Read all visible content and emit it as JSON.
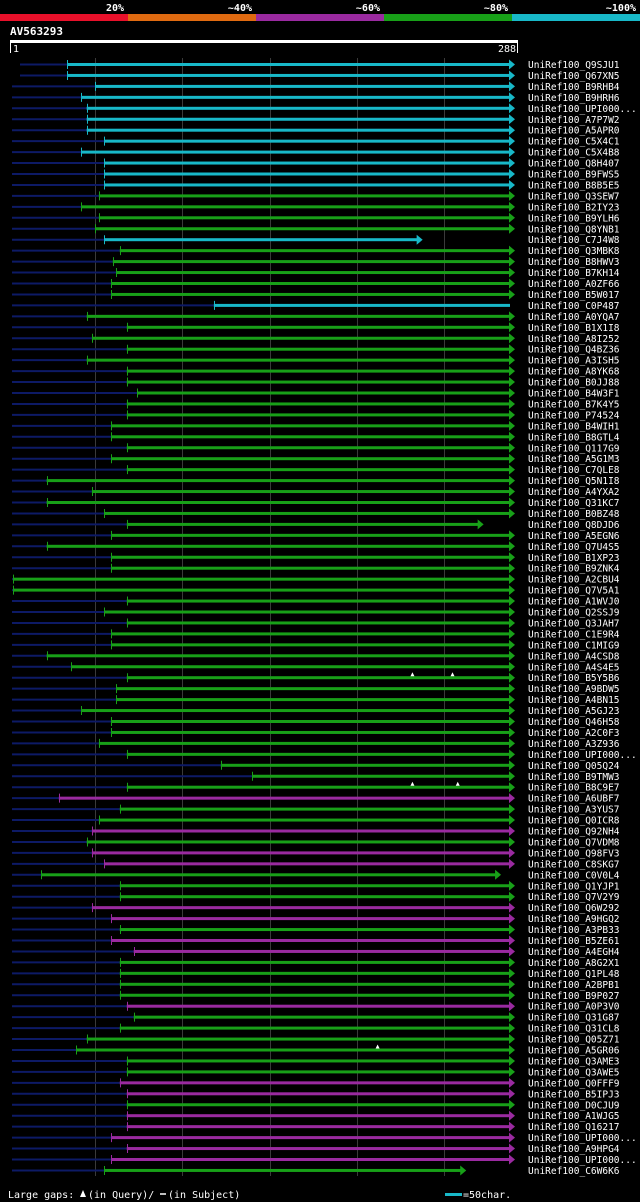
{
  "chart_data": {
    "type": "alignment-overview",
    "identity_scale": {
      "segments": [
        {
          "label": "20%",
          "color": "#e8102a"
        },
        {
          "label": "~40%",
          "color": "#e06a10"
        },
        {
          "label": "~60%",
          "color": "#9a2aa0"
        },
        {
          "label": "~80%",
          "color": "#18a018"
        },
        {
          "label": "~100%",
          "color": "#18b8c8"
        }
      ]
    },
    "query": {
      "id": "AV563293",
      "start": 1,
      "end": 288
    },
    "footer": {
      "gaps_label": "Large gaps:",
      "query_gap_text": "(in Query)/",
      "subject_gap_text": "(in Subject)",
      "scale_label": "=50char."
    },
    "colors": {
      "cyan": "#18b8c8",
      "green": "#18a018",
      "purple": "#9a2aa0",
      "navy": "#0d1a66",
      "grid": "#3a3a3a"
    },
    "hits": [
      {
        "name": "UniRef100_Q9SJU1",
        "tail": 8,
        "start": 34,
        "end": 288,
        "color": "cyan",
        "arrow": "right",
        "pipe": 1
      },
      {
        "name": "UniRef100_Q67XN5",
        "tail": 8,
        "start": 34,
        "end": 288,
        "color": "cyan",
        "arrow": "right",
        "pipe": 1
      },
      {
        "name": "UniRef100_B9RHB4",
        "tail": 0,
        "start": 50,
        "end": 288,
        "color": "cyan",
        "arrow": "right",
        "pipe": 1
      },
      {
        "name": "UniRef100_B9HRH6",
        "tail": 0,
        "start": 42,
        "end": 288,
        "color": "cyan",
        "arrow": "right",
        "pipe": 1
      },
      {
        "name": "UniRef100_UPI000...",
        "tail": 0,
        "start": 45,
        "end": 288,
        "color": "cyan",
        "arrow": "right"
      },
      {
        "name": "UniRef100_A7P7W2",
        "tail": 0,
        "start": 45,
        "end": 288,
        "color": "cyan",
        "arrow": "right"
      },
      {
        "name": "UniRef100_A5APR0",
        "tail": 0,
        "start": 45,
        "end": 288,
        "color": "cyan",
        "arrow": "right"
      },
      {
        "name": "UniRef100_C5X4C1",
        "tail": 0,
        "start": 55,
        "end": 288,
        "color": "cyan",
        "arrow": "right"
      },
      {
        "name": "UniRef100_C5X4B8",
        "tail": 0,
        "start": 42,
        "end": 288,
        "color": "cyan",
        "arrow": "right"
      },
      {
        "name": "UniRef100_Q8H407",
        "tail": 0,
        "start": 55,
        "end": 288,
        "color": "cyan",
        "arrow": "right"
      },
      {
        "name": "UniRef100_B9FWS5",
        "tail": 0,
        "start": 55,
        "end": 288,
        "color": "cyan",
        "arrow": "right"
      },
      {
        "name": "UniRef100_B8B5E5",
        "tail": 0,
        "start": 55,
        "end": 288,
        "color": "cyan",
        "arrow": "right"
      },
      {
        "name": "UniRef100_Q3SEW7",
        "tail": 0,
        "start": 52,
        "end": 288,
        "color": "green",
        "arrow": "right"
      },
      {
        "name": "UniRef100_B2IY23",
        "tail": 0,
        "start": 42,
        "end": 288,
        "color": "green",
        "arrow": "right"
      },
      {
        "name": "UniRef100_B9YLH6",
        "tail": 0,
        "start": 52,
        "end": 288,
        "color": "green",
        "arrow": "right"
      },
      {
        "name": "UniRef100_Q8YNB1",
        "tail": 0,
        "start": 50,
        "end": 288,
        "color": "green",
        "arrow": "right"
      },
      {
        "name": "UniRef100_C7J4W8",
        "tail": 0,
        "start": 55,
        "end": 235,
        "color": "cyan",
        "arrow": "right"
      },
      {
        "name": "UniRef100_Q3MBK8",
        "tail": 0,
        "start": 64,
        "end": 288,
        "color": "green",
        "arrow": "right"
      },
      {
        "name": "UniRef100_B8HWV3",
        "tail": 0,
        "start": 60,
        "end": 288,
        "color": "green",
        "arrow": "right"
      },
      {
        "name": "UniRef100_B7KH14",
        "tail": 0,
        "start": 62,
        "end": 288,
        "color": "green",
        "arrow": "right"
      },
      {
        "name": "UniRef100_A0ZF66",
        "tail": 0,
        "start": 59,
        "end": 288,
        "color": "green",
        "arrow": "right"
      },
      {
        "name": "UniRef100_B5W017",
        "tail": 0,
        "start": 59,
        "end": 288,
        "color": "green",
        "arrow": "right"
      },
      {
        "name": "UniRef100_C0P487",
        "tail": 0,
        "start": 118,
        "end": 288,
        "color": "cyan",
        "arrow": "none"
      },
      {
        "name": "UniRef100_A0YQA7",
        "tail": 0,
        "start": 45,
        "end": 288,
        "color": "green",
        "arrow": "right"
      },
      {
        "name": "UniRef100_B1X1I8",
        "tail": 0,
        "start": 68,
        "end": 288,
        "color": "green",
        "arrow": "right"
      },
      {
        "name": "UniRef100_A8I252",
        "tail": 0,
        "start": 48,
        "end": 288,
        "color": "green",
        "arrow": "right"
      },
      {
        "name": "UniRef100_Q4BZ36",
        "tail": 0,
        "start": 68,
        "end": 288,
        "color": "green",
        "arrow": "right"
      },
      {
        "name": "UniRef100_A3ISH5",
        "tail": 0,
        "start": 45,
        "end": 288,
        "color": "green",
        "arrow": "right"
      },
      {
        "name": "UniRef100_A8YK68",
        "tail": 0,
        "start": 68,
        "end": 288,
        "color": "green",
        "arrow": "right"
      },
      {
        "name": "UniRef100_B0JJ88",
        "tail": 0,
        "start": 68,
        "end": 288,
        "color": "green",
        "arrow": "right"
      },
      {
        "name": "UniRef100_B4W3F1",
        "tail": 0,
        "start": 74,
        "end": 288,
        "color": "green",
        "arrow": "right"
      },
      {
        "name": "UniRef100_B7K4Y5",
        "tail": 0,
        "start": 68,
        "end": 288,
        "color": "green",
        "arrow": "right"
      },
      {
        "name": "UniRef100_P74524",
        "tail": 0,
        "start": 68,
        "end": 288,
        "color": "green",
        "arrow": "right"
      },
      {
        "name": "UniRef100_B4WIH1",
        "tail": 0,
        "start": 59,
        "end": 288,
        "color": "green",
        "arrow": "right"
      },
      {
        "name": "UniRef100_B8GTL4",
        "tail": 0,
        "start": 59,
        "end": 288,
        "color": "green",
        "arrow": "right"
      },
      {
        "name": "UniRef100_Q117G9",
        "tail": 0,
        "start": 68,
        "end": 288,
        "color": "green",
        "arrow": "right"
      },
      {
        "name": "UniRef100_A5G1M3",
        "tail": 0,
        "start": 59,
        "end": 288,
        "color": "green",
        "arrow": "right"
      },
      {
        "name": "UniRef100_C7QLE8",
        "tail": 0,
        "start": 68,
        "end": 288,
        "color": "green",
        "arrow": "right"
      },
      {
        "name": "UniRef100_Q5N1I8",
        "tail": 0,
        "start": 22,
        "end": 288,
        "color": "green",
        "arrow": "right"
      },
      {
        "name": "UniRef100_A4YXA2",
        "tail": 0,
        "start": 48,
        "end": 288,
        "color": "green",
        "arrow": "right"
      },
      {
        "name": "UniRef100_Q31KC7",
        "tail": 0,
        "start": 22,
        "end": 288,
        "color": "green",
        "arrow": "right"
      },
      {
        "name": "UniRef100_B0BZ48",
        "tail": 0,
        "start": 55,
        "end": 288,
        "color": "green",
        "arrow": "right"
      },
      {
        "name": "UniRef100_Q8DJD6",
        "tail": 0,
        "start": 68,
        "end": 270,
        "color": "green",
        "arrow": "right"
      },
      {
        "name": "UniRef100_A5EGN6",
        "tail": 0,
        "start": 59,
        "end": 288,
        "color": "green",
        "arrow": "right"
      },
      {
        "name": "UniRef100_Q7U4S5",
        "tail": 0,
        "start": 22,
        "end": 288,
        "color": "green",
        "arrow": "right"
      },
      {
        "name": "UniRef100_B1XP23",
        "tail": 0,
        "start": 59,
        "end": 288,
        "color": "green",
        "arrow": "right"
      },
      {
        "name": "UniRef100_B9ZNK4",
        "tail": 0,
        "start": 59,
        "end": 288,
        "color": "green",
        "arrow": "right"
      },
      {
        "name": "UniRef100_A2CBU4",
        "tail": 0,
        "start": 3,
        "end": 288,
        "color": "green",
        "arrow": "right"
      },
      {
        "name": "UniRef100_Q7V5A1",
        "tail": 0,
        "start": 3,
        "end": 288,
        "color": "green",
        "arrow": "right"
      },
      {
        "name": "UniRef100_A1WVJ0",
        "tail": 0,
        "start": 68,
        "end": 288,
        "color": "green",
        "arrow": "right"
      },
      {
        "name": "UniRef100_Q2SSJ9",
        "tail": 0,
        "start": 55,
        "end": 288,
        "color": "green",
        "arrow": "right"
      },
      {
        "name": "UniRef100_Q3JAH7",
        "tail": 0,
        "start": 68,
        "end": 288,
        "color": "green",
        "arrow": "right"
      },
      {
        "name": "UniRef100_C1E9R4",
        "tail": 0,
        "start": 59,
        "end": 288,
        "color": "green",
        "arrow": "right"
      },
      {
        "name": "UniRef100_C1MIG9",
        "tail": 0,
        "start": 59,
        "end": 288,
        "color": "green",
        "arrow": "right"
      },
      {
        "name": "UniRef100_A4CSD8",
        "tail": 0,
        "start": 22,
        "end": 288,
        "color": "green",
        "arrow": "right"
      },
      {
        "name": "UniRef100_A4S4E5",
        "tail": 0,
        "start": 36,
        "end": 288,
        "color": "green",
        "arrow": "right"
      },
      {
        "name": "UniRef100_B5Y5B6",
        "tail": 0,
        "start": 68,
        "end": 288,
        "color": "green",
        "arrow": "right",
        "marks": [
          232,
          255
        ]
      },
      {
        "name": "UniRef100_A9BDW5",
        "tail": 0,
        "start": 62,
        "end": 288,
        "color": "green",
        "arrow": "right"
      },
      {
        "name": "UniRef100_A4BN15",
        "tail": 0,
        "start": 62,
        "end": 288,
        "color": "green",
        "arrow": "right"
      },
      {
        "name": "UniRef100_A5GJ23",
        "tail": 0,
        "start": 42,
        "end": 288,
        "color": "green",
        "arrow": "right"
      },
      {
        "name": "UniRef100_Q46H58",
        "tail": 0,
        "start": 59,
        "end": 288,
        "color": "green",
        "arrow": "right"
      },
      {
        "name": "UniRef100_A2C0F3",
        "tail": 0,
        "start": 59,
        "end": 288,
        "color": "green",
        "arrow": "right"
      },
      {
        "name": "UniRef100_A3Z936",
        "tail": 0,
        "start": 52,
        "end": 288,
        "color": "green",
        "arrow": "right"
      },
      {
        "name": "UniRef100_UPI000...",
        "tail": 0,
        "start": 68,
        "end": 288,
        "color": "green",
        "arrow": "right"
      },
      {
        "name": "UniRef100_Q05Q24",
        "tail": 0,
        "start": 122,
        "end": 288,
        "color": "green",
        "arrow": "right"
      },
      {
        "name": "UniRef100_B9TMW3",
        "tail": 0,
        "start": 140,
        "end": 288,
        "color": "green",
        "arrow": "right"
      },
      {
        "name": "UniRef100_B8C9E7",
        "tail": 0,
        "start": 68,
        "end": 288,
        "color": "green",
        "arrow": "right",
        "marks": [
          232,
          258
        ]
      },
      {
        "name": "UniRef100_A6UBF7",
        "tail": 0,
        "start": 29,
        "end": 288,
        "color": "purple",
        "arrow": "right"
      },
      {
        "name": "UniRef100_A3YUS7",
        "tail": 0,
        "start": 64,
        "end": 288,
        "color": "green",
        "arrow": "right"
      },
      {
        "name": "UniRef100_Q0ICR8",
        "tail": 0,
        "start": 52,
        "end": 288,
        "color": "green",
        "arrow": "right"
      },
      {
        "name": "UniRef100_Q92NH4",
        "tail": 0,
        "start": 48,
        "end": 288,
        "color": "purple",
        "arrow": "right"
      },
      {
        "name": "UniRef100_Q7VDM8",
        "tail": 0,
        "start": 45,
        "end": 288,
        "color": "green",
        "arrow": "right"
      },
      {
        "name": "UniRef100_Q98FV3",
        "tail": 0,
        "start": 48,
        "end": 288,
        "color": "purple",
        "arrow": "right"
      },
      {
        "name": "UniRef100_C8SKG7",
        "tail": 0,
        "start": 55,
        "end": 288,
        "color": "purple",
        "arrow": "right"
      },
      {
        "name": "UniRef100_C0V0L4",
        "tail": 0,
        "start": 19,
        "end": 280,
        "color": "green",
        "arrow": "right"
      },
      {
        "name": "UniRef100_Q1YJP1",
        "tail": 0,
        "start": 64,
        "end": 288,
        "color": "green",
        "arrow": "right"
      },
      {
        "name": "UniRef100_Q7V2Y9",
        "tail": 0,
        "start": 64,
        "end": 288,
        "color": "green",
        "arrow": "right"
      },
      {
        "name": "UniRef100_Q6W292",
        "tail": 0,
        "start": 48,
        "end": 288,
        "color": "purple",
        "arrow": "right"
      },
      {
        "name": "UniRef100_A9HGQ2",
        "tail": 0,
        "start": 59,
        "end": 288,
        "color": "purple",
        "arrow": "right"
      },
      {
        "name": "UniRef100_A3PB33",
        "tail": 0,
        "start": 64,
        "end": 288,
        "color": "green",
        "arrow": "right"
      },
      {
        "name": "UniRef100_B5ZE61",
        "tail": 0,
        "start": 59,
        "end": 288,
        "color": "purple",
        "arrow": "right"
      },
      {
        "name": "UniRef100_A4EGH4",
        "tail": 0,
        "start": 72,
        "end": 288,
        "color": "purple",
        "arrow": "right"
      },
      {
        "name": "UniRef100_A8G2X1",
        "tail": 0,
        "start": 64,
        "end": 288,
        "color": "green",
        "arrow": "right"
      },
      {
        "name": "UniRef100_Q1PL48",
        "tail": 0,
        "start": 64,
        "end": 288,
        "color": "green",
        "arrow": "right"
      },
      {
        "name": "UniRef100_A2BPB1",
        "tail": 0,
        "start": 64,
        "end": 288,
        "color": "green",
        "arrow": "right"
      },
      {
        "name": "UniRef100_B9P027",
        "tail": 0,
        "start": 64,
        "end": 288,
        "color": "green",
        "arrow": "right"
      },
      {
        "name": "UniRef100_A0P3V0",
        "tail": 0,
        "start": 68,
        "end": 288,
        "color": "purple",
        "arrow": "right"
      },
      {
        "name": "UniRef100_Q31G87",
        "tail": 0,
        "start": 72,
        "end": 288,
        "color": "green",
        "arrow": "right"
      },
      {
        "name": "UniRef100_Q31CL8",
        "tail": 0,
        "start": 64,
        "end": 288,
        "color": "green",
        "arrow": "right"
      },
      {
        "name": "UniRef100_Q05Z71",
        "tail": 0,
        "start": 45,
        "end": 288,
        "color": "green",
        "arrow": "right"
      },
      {
        "name": "UniRef100_A5GR06",
        "tail": 0,
        "start": 39,
        "end": 288,
        "color": "green",
        "arrow": "right",
        "marks": [
          212
        ]
      },
      {
        "name": "UniRef100_Q3AME3",
        "tail": 0,
        "start": 68,
        "end": 288,
        "color": "green",
        "arrow": "right"
      },
      {
        "name": "UniRef100_Q3AWE5",
        "tail": 0,
        "start": 68,
        "end": 288,
        "color": "green",
        "arrow": "right"
      },
      {
        "name": "UniRef100_Q0FFF9",
        "tail": 0,
        "start": 64,
        "end": 288,
        "color": "purple",
        "arrow": "right"
      },
      {
        "name": "UniRef100_B5IPJ3",
        "tail": 0,
        "start": 68,
        "end": 288,
        "color": "purple",
        "arrow": "right"
      },
      {
        "name": "UniRef100_D0CJU9",
        "tail": 0,
        "start": 68,
        "end": 288,
        "color": "green",
        "arrow": "right"
      },
      {
        "name": "UniRef100_A1WJG5",
        "tail": 0,
        "start": 68,
        "end": 288,
        "color": "purple",
        "arrow": "right"
      },
      {
        "name": "UniRef100_Q16217",
        "tail": 0,
        "start": 68,
        "end": 288,
        "color": "purple",
        "arrow": "right"
      },
      {
        "name": "UniRef100_UPI000...",
        "tail": 0,
        "start": 59,
        "end": 288,
        "color": "purple",
        "arrow": "right"
      },
      {
        "name": "UniRef100_A9HPG4",
        "tail": 0,
        "start": 68,
        "end": 288,
        "color": "purple",
        "arrow": "right"
      },
      {
        "name": "UniRef100_UPI000...",
        "tail": 0,
        "start": 59,
        "end": 288,
        "color": "purple",
        "arrow": "right"
      },
      {
        "name": "UniRef100_C6W6K6",
        "tail": 0,
        "start": 55,
        "end": 260,
        "color": "green",
        "arrow": "right"
      }
    ]
  }
}
